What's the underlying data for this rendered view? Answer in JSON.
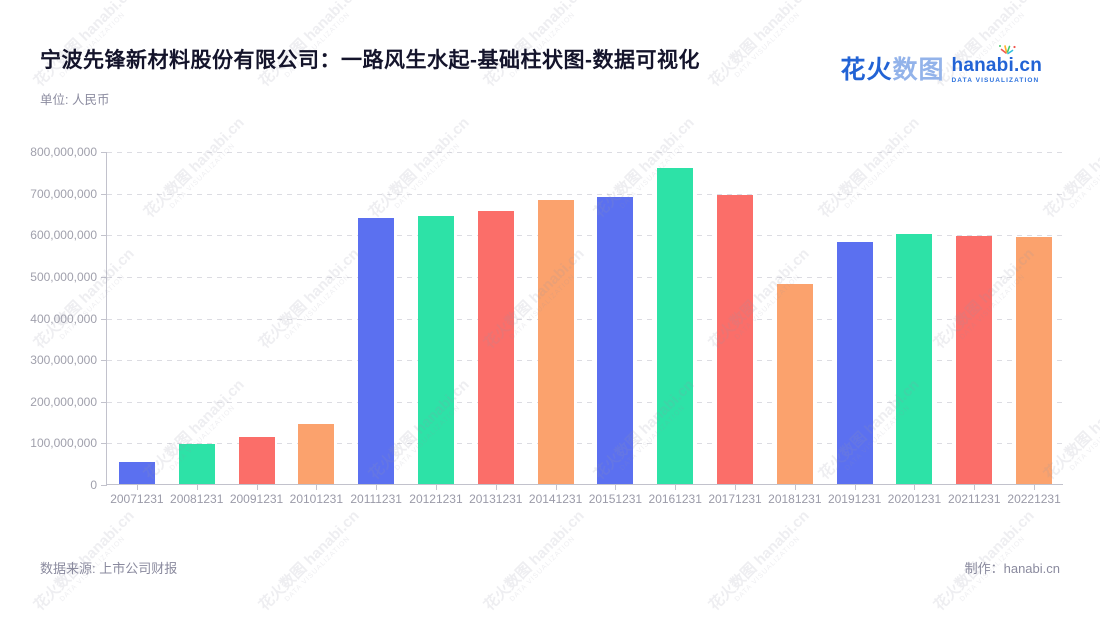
{
  "header": {
    "title": "宁波先锋新材料股份有限公司：一路风生水起-基础柱状图-数据可视化",
    "unit_label": "单位: 人民币",
    "logo": {
      "brand_cn_strong": "花火",
      "brand_cn_light": "数图",
      "brand_en": "hanabi.cn",
      "brand_sub": "DATA VISUALIZATION"
    }
  },
  "footer": {
    "source_label": "数据来源: 上市公司财报",
    "credit_label": "制作：hanabi.cn"
  },
  "watermark": {
    "text": "花火数图 hanabi.cn",
    "subtext": "DATA VISUALIZATION"
  },
  "chart_data": {
    "type": "bar",
    "title": "宁波先锋新材料股份有限公司：一路风生水起-基础柱状图-数据可视化",
    "unit": "人民币",
    "categories": [
      "20071231",
      "20081231",
      "20091231",
      "20101231",
      "20111231",
      "20121231",
      "20131231",
      "20141231",
      "20151231",
      "20161231",
      "20171231",
      "20181231",
      "20191231",
      "20201231",
      "20211231",
      "20221231"
    ],
    "values": [
      54000000,
      95000000,
      114000000,
      144000000,
      640000000,
      643000000,
      656000000,
      683000000,
      690000000,
      758000000,
      694000000,
      480000000,
      582000000,
      600000000,
      595000000,
      593000000
    ],
    "bar_palette": [
      "#5B70F0",
      "#2DE2A7",
      "#FB6E69",
      "#FBA26D"
    ],
    "xlabel": "",
    "ylabel": "",
    "ylim": [
      0,
      800000000
    ],
    "ytick_interval": 100000000,
    "grid": "horizontal-dashed",
    "legend": "none"
  }
}
